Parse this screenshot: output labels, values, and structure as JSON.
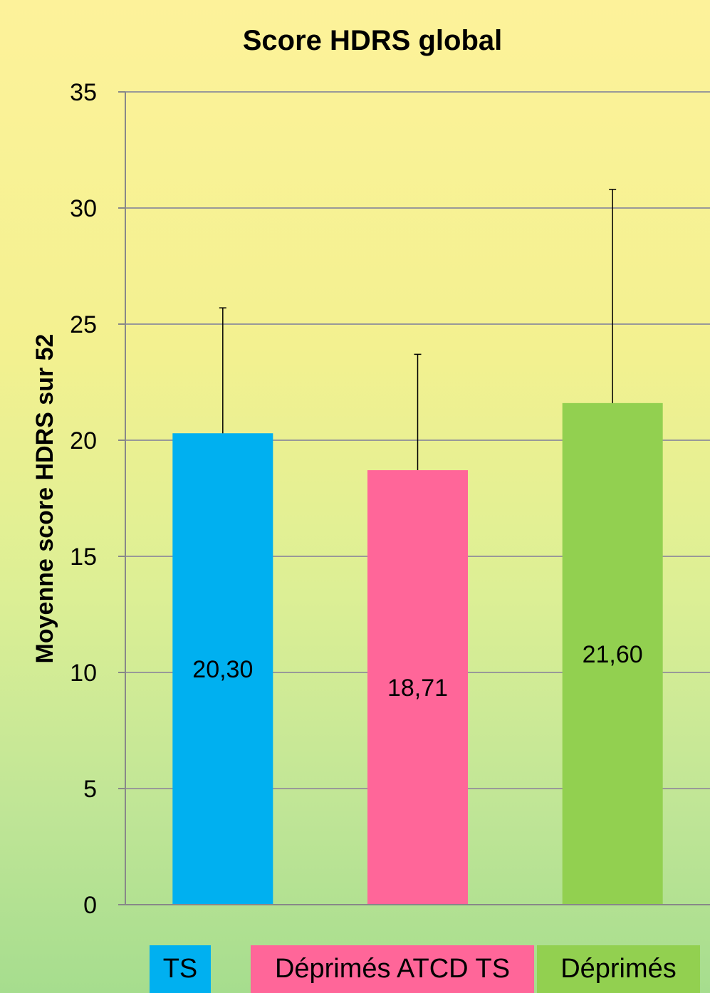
{
  "chart_data": {
    "type": "bar",
    "title": "Score HDRS global",
    "ylabel": "Moyenne score HDRS sur 52",
    "xlabel": "",
    "categories": [
      "TS",
      "Déprimés ATCD TS",
      "Déprimés"
    ],
    "values": [
      20.3,
      18.71,
      21.6
    ],
    "value_labels": [
      "20,30",
      "18,71",
      "21,60"
    ],
    "error_upper": [
      25.7,
      23.7,
      30.8
    ],
    "colors": [
      "#00b0f0",
      "#ff6699",
      "#92d050"
    ],
    "ylim": [
      0,
      35
    ],
    "yticks": [
      0,
      5,
      10,
      15,
      20,
      25,
      30,
      35
    ],
    "grid": true,
    "legend_position": "bottom"
  }
}
